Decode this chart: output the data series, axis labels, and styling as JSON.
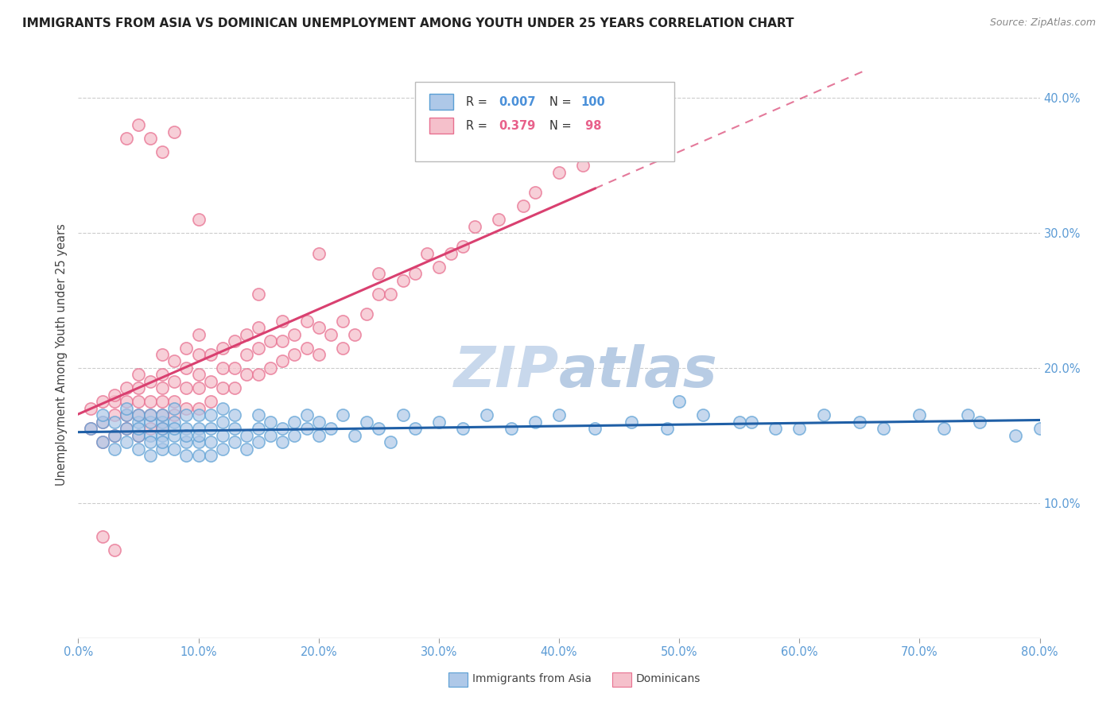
{
  "title": "IMMIGRANTS FROM ASIA VS DOMINICAN UNEMPLOYMENT AMONG YOUTH UNDER 25 YEARS CORRELATION CHART",
  "source": "Source: ZipAtlas.com",
  "ylabel": "Unemployment Among Youth under 25 years",
  "x_min": 0.0,
  "x_max": 0.8,
  "y_min": 0.0,
  "y_max": 0.42,
  "x_tick_labels": [
    "0.0%",
    "10.0%",
    "20.0%",
    "30.0%",
    "40.0%",
    "50.0%",
    "60.0%",
    "70.0%",
    "80.0%"
  ],
  "x_tick_values": [
    0.0,
    0.1,
    0.2,
    0.3,
    0.4,
    0.5,
    0.6,
    0.7,
    0.8
  ],
  "y_tick_labels": [
    "10.0%",
    "20.0%",
    "30.0%",
    "40.0%"
  ],
  "y_tick_values": [
    0.1,
    0.2,
    0.3,
    0.4
  ],
  "blue_scatter_color": "#aec8e8",
  "blue_edge_color": "#5a9fd4",
  "pink_scatter_color": "#f5c0cb",
  "pink_edge_color": "#e87090",
  "blue_line_color": "#1f5fa6",
  "pink_line_color": "#d94070",
  "watermark_color": "#c8d8ec",
  "background_color": "#ffffff",
  "grid_color": "#cccccc",
  "blue_points_x": [
    0.01,
    0.02,
    0.02,
    0.02,
    0.03,
    0.03,
    0.03,
    0.04,
    0.04,
    0.04,
    0.04,
    0.05,
    0.05,
    0.05,
    0.05,
    0.05,
    0.06,
    0.06,
    0.06,
    0.06,
    0.06,
    0.07,
    0.07,
    0.07,
    0.07,
    0.07,
    0.07,
    0.08,
    0.08,
    0.08,
    0.08,
    0.08,
    0.09,
    0.09,
    0.09,
    0.09,
    0.09,
    0.1,
    0.1,
    0.1,
    0.1,
    0.1,
    0.11,
    0.11,
    0.11,
    0.11,
    0.12,
    0.12,
    0.12,
    0.12,
    0.13,
    0.13,
    0.13,
    0.14,
    0.14,
    0.15,
    0.15,
    0.15,
    0.16,
    0.16,
    0.17,
    0.17,
    0.18,
    0.18,
    0.19,
    0.19,
    0.2,
    0.2,
    0.21,
    0.22,
    0.23,
    0.24,
    0.25,
    0.26,
    0.27,
    0.28,
    0.3,
    0.32,
    0.34,
    0.36,
    0.38,
    0.4,
    0.43,
    0.46,
    0.49,
    0.52,
    0.56,
    0.6,
    0.65,
    0.7,
    0.72,
    0.74,
    0.5,
    0.55,
    0.58,
    0.62,
    0.67,
    0.75,
    0.78,
    0.8
  ],
  "blue_points_y": [
    0.155,
    0.16,
    0.145,
    0.165,
    0.15,
    0.16,
    0.14,
    0.155,
    0.165,
    0.145,
    0.17,
    0.15,
    0.16,
    0.14,
    0.155,
    0.165,
    0.15,
    0.16,
    0.145,
    0.135,
    0.165,
    0.15,
    0.16,
    0.14,
    0.155,
    0.145,
    0.165,
    0.15,
    0.16,
    0.14,
    0.155,
    0.17,
    0.145,
    0.155,
    0.165,
    0.135,
    0.15,
    0.155,
    0.145,
    0.135,
    0.165,
    0.15,
    0.145,
    0.155,
    0.165,
    0.135,
    0.15,
    0.16,
    0.14,
    0.17,
    0.145,
    0.155,
    0.165,
    0.15,
    0.14,
    0.155,
    0.145,
    0.165,
    0.15,
    0.16,
    0.155,
    0.145,
    0.16,
    0.15,
    0.155,
    0.165,
    0.15,
    0.16,
    0.155,
    0.165,
    0.15,
    0.16,
    0.155,
    0.145,
    0.165,
    0.155,
    0.16,
    0.155,
    0.165,
    0.155,
    0.16,
    0.165,
    0.155,
    0.16,
    0.155,
    0.165,
    0.16,
    0.155,
    0.16,
    0.165,
    0.155,
    0.165,
    0.175,
    0.16,
    0.155,
    0.165,
    0.155,
    0.16,
    0.15,
    0.155
  ],
  "pink_points_x": [
    0.01,
    0.01,
    0.02,
    0.02,
    0.02,
    0.03,
    0.03,
    0.03,
    0.03,
    0.04,
    0.04,
    0.04,
    0.04,
    0.05,
    0.05,
    0.05,
    0.05,
    0.05,
    0.06,
    0.06,
    0.06,
    0.06,
    0.07,
    0.07,
    0.07,
    0.07,
    0.07,
    0.07,
    0.08,
    0.08,
    0.08,
    0.08,
    0.09,
    0.09,
    0.09,
    0.09,
    0.1,
    0.1,
    0.1,
    0.1,
    0.1,
    0.11,
    0.11,
    0.11,
    0.12,
    0.12,
    0.12,
    0.13,
    0.13,
    0.13,
    0.14,
    0.14,
    0.14,
    0.15,
    0.15,
    0.15,
    0.16,
    0.16,
    0.17,
    0.17,
    0.17,
    0.18,
    0.18,
    0.19,
    0.19,
    0.2,
    0.2,
    0.21,
    0.22,
    0.22,
    0.23,
    0.24,
    0.25,
    0.25,
    0.26,
    0.27,
    0.28,
    0.29,
    0.3,
    0.31,
    0.32,
    0.33,
    0.35,
    0.37,
    0.38,
    0.4,
    0.42,
    0.43,
    0.2,
    0.1,
    0.15,
    0.08,
    0.07,
    0.06,
    0.05,
    0.04,
    0.03,
    0.02
  ],
  "pink_points_y": [
    0.155,
    0.17,
    0.145,
    0.16,
    0.175,
    0.15,
    0.165,
    0.175,
    0.18,
    0.155,
    0.165,
    0.175,
    0.185,
    0.15,
    0.165,
    0.175,
    0.185,
    0.195,
    0.155,
    0.165,
    0.175,
    0.19,
    0.155,
    0.165,
    0.175,
    0.185,
    0.195,
    0.21,
    0.165,
    0.175,
    0.19,
    0.205,
    0.17,
    0.185,
    0.2,
    0.215,
    0.17,
    0.185,
    0.195,
    0.21,
    0.225,
    0.175,
    0.19,
    0.21,
    0.185,
    0.2,
    0.215,
    0.185,
    0.2,
    0.22,
    0.195,
    0.21,
    0.225,
    0.195,
    0.215,
    0.23,
    0.2,
    0.22,
    0.205,
    0.22,
    0.235,
    0.21,
    0.225,
    0.215,
    0.235,
    0.21,
    0.23,
    0.225,
    0.215,
    0.235,
    0.225,
    0.24,
    0.255,
    0.27,
    0.255,
    0.265,
    0.27,
    0.285,
    0.275,
    0.285,
    0.29,
    0.305,
    0.31,
    0.32,
    0.33,
    0.345,
    0.35,
    0.365,
    0.285,
    0.31,
    0.255,
    0.375,
    0.36,
    0.37,
    0.38,
    0.37,
    0.065,
    0.075
  ]
}
